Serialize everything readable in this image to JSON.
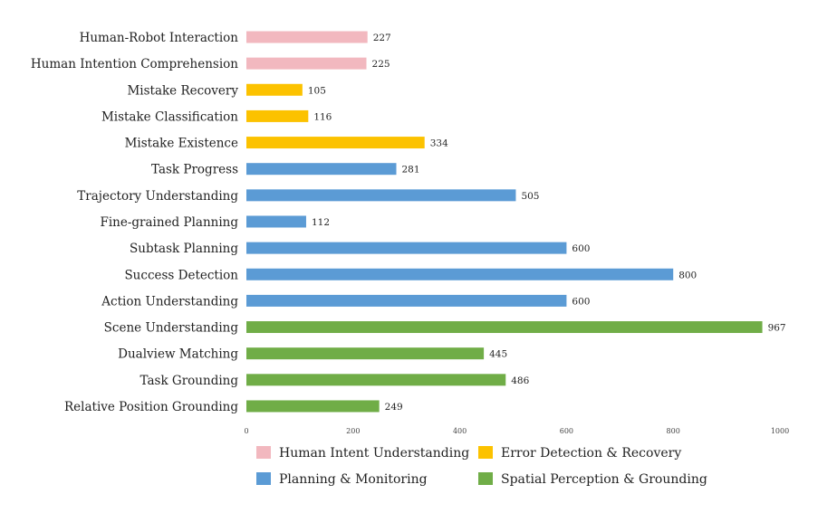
{
  "chart_data": {
    "type": "bar",
    "orientation": "horizontal",
    "title": "",
    "xlabel": "",
    "ylabel": "",
    "xlim": [
      0,
      1000
    ],
    "xticks": [
      0,
      200,
      400,
      600,
      800,
      1000
    ],
    "grid": false,
    "legend_position": "bottom",
    "groups": [
      {
        "name": "Human Intent Understanding",
        "color": "#f2b8bf"
      },
      {
        "name": "Error Detection & Recovery",
        "color": "#fcc200"
      },
      {
        "name": "Planning & Monitoring",
        "color": "#5b9bd5"
      },
      {
        "name": "Spatial Perception & Grounding",
        "color": "#70ad47"
      }
    ],
    "categories": [
      "Human-Robot Interaction",
      "Human Intention Comprehension",
      "Mistake Recovery",
      "Mistake Classification",
      "Mistake Existence",
      "Task Progress",
      "Trajectory Understanding",
      "Fine-grained Planning",
      "Subtask Planning",
      "Success Detection",
      "Action Understanding",
      "Scene Understanding",
      "Dualview Matching",
      "Task Grounding",
      "Relative Position Grounding"
    ],
    "values": [
      227,
      225,
      105,
      116,
      334,
      281,
      505,
      112,
      600,
      800,
      600,
      967,
      445,
      486,
      249
    ],
    "group_index": [
      0,
      0,
      1,
      1,
      1,
      2,
      2,
      2,
      2,
      2,
      2,
      3,
      3,
      3,
      3
    ]
  }
}
